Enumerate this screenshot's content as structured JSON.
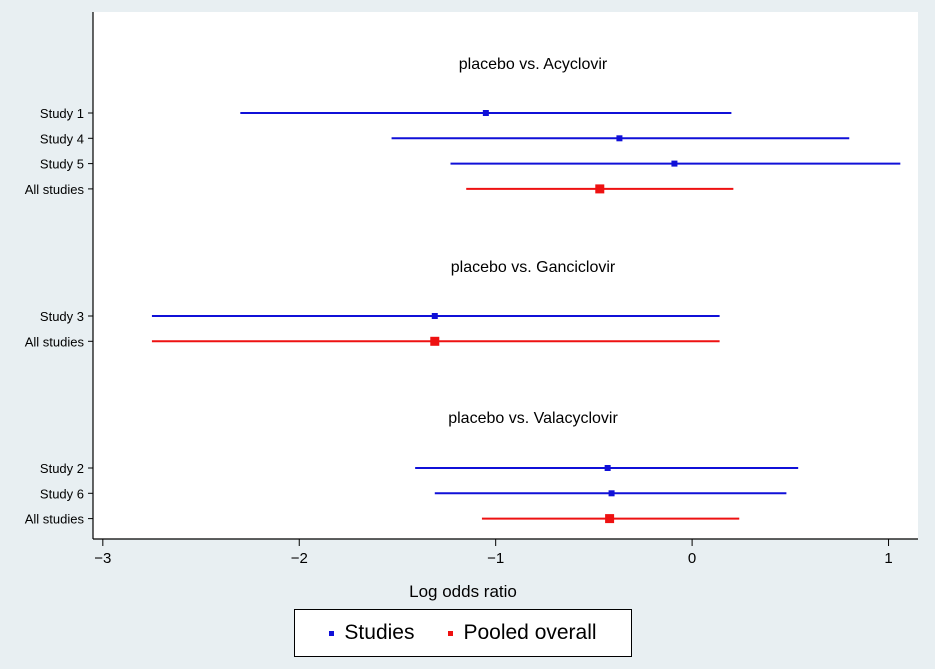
{
  "chart_data": {
    "type": "forest",
    "xlabel": "Log odds ratio",
    "xlim": [
      -3.05,
      1.15
    ],
    "xticks": [
      -3,
      -2,
      -1,
      0,
      1
    ],
    "xtick_labels": [
      "−3",
      "−2",
      "−1",
      "0",
      "1"
    ],
    "grid": false,
    "legend_placement": "bottom-center",
    "colors": {
      "study": "#1010d8",
      "pooled": "#ee1111"
    },
    "legend": [
      {
        "name": "Studies",
        "color": "#1010d8"
      },
      {
        "name": "Pooled overall",
        "color": "#ee1111"
      }
    ],
    "groups": [
      {
        "title": "placebo vs. Acyclovir",
        "rows": [
          {
            "label": "Study 1",
            "estimate": -1.05,
            "lower": -2.3,
            "upper": 0.2,
            "kind": "study"
          },
          {
            "label": "Study 4",
            "estimate": -0.37,
            "lower": -1.53,
            "upper": 0.8,
            "kind": "study"
          },
          {
            "label": "Study 5",
            "estimate": -0.09,
            "lower": -1.23,
            "upper": 1.06,
            "kind": "study"
          },
          {
            "label": "All studies",
            "estimate": -0.47,
            "lower": -1.15,
            "upper": 0.21,
            "kind": "pooled"
          }
        ]
      },
      {
        "title": "placebo vs. Ganciclovir",
        "rows": [
          {
            "label": "Study 3",
            "estimate": -1.31,
            "lower": -2.75,
            "upper": 0.14,
            "kind": "study"
          },
          {
            "label": "All studies",
            "estimate": -1.31,
            "lower": -2.75,
            "upper": 0.14,
            "kind": "pooled"
          }
        ]
      },
      {
        "title": "placebo vs. Valacyclovir",
        "rows": [
          {
            "label": "Study 2",
            "estimate": -0.43,
            "lower": -1.41,
            "upper": 0.54,
            "kind": "study"
          },
          {
            "label": "Study 6",
            "estimate": -0.41,
            "lower": -1.31,
            "upper": 0.48,
            "kind": "study"
          },
          {
            "label": "All studies",
            "estimate": -0.42,
            "lower": -1.07,
            "upper": 0.24,
            "kind": "pooled"
          }
        ]
      }
    ]
  }
}
